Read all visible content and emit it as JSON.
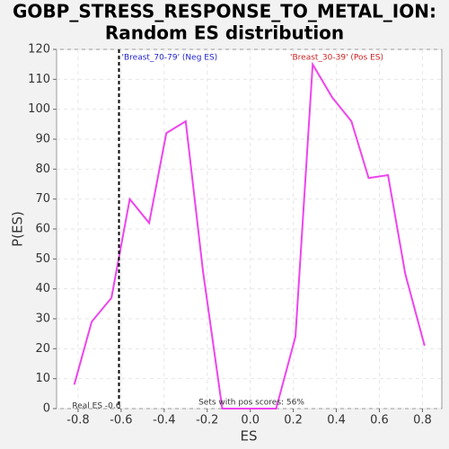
{
  "chart_data": {
    "type": "line",
    "title": [
      "GOBP_STRESS_RESPONSE_TO_METAL_ION:",
      "Random ES distribution"
    ],
    "x_label": "ES",
    "y_label": "P(ES)",
    "x": [
      -0.818,
      -0.737,
      -0.645,
      -0.56,
      -0.47,
      -0.39,
      -0.3,
      -0.22,
      -0.13,
      -0.05,
      0.04,
      0.12,
      0.21,
      0.29,
      0.38,
      0.47,
      0.55,
      0.64,
      0.72,
      0.81
    ],
    "series": [
      {
        "name": "P(ES)",
        "color": "#ee44ee",
        "values": [
          8,
          29,
          37,
          70,
          62,
          92,
          96,
          46,
          0,
          0,
          0,
          0,
          24,
          115,
          104,
          96,
          77,
          78,
          45,
          21
        ]
      }
    ],
    "xlim": [
      -0.9,
      0.89
    ],
    "ylim": [
      0,
      120
    ],
    "xticks": [
      -0.8,
      -0.6,
      -0.4,
      -0.2,
      {
        "value": 0,
        "label": "0.0"
      },
      0.2,
      0.4,
      0.6,
      0.8
    ],
    "yticks": [
      0,
      10,
      20,
      30,
      40,
      50,
      60,
      70,
      80,
      90,
      100,
      110,
      120
    ],
    "grid": true,
    "real_es": {
      "value": -0.61,
      "label": "Real ES -0.6"
    },
    "annotations": [
      {
        "text": "'Breast_70-79' (Neg ES)",
        "color": "#2222cc"
      },
      {
        "text": "'Breast_30-39' (Pos ES)",
        "color": "#cc2222"
      },
      {
        "text": "Sets with pos scores: 56%",
        "color": "#333333"
      }
    ]
  }
}
